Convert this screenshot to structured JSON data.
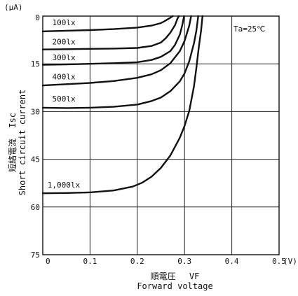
{
  "chart_data": {
    "type": "line",
    "y_unit_label": "(μA)",
    "x_unit_label": "(V)",
    "condition_note": "Ta=25℃",
    "y_title_jp": "短絡電流",
    "y_title_symbol": "Isc",
    "y_title_en": "Short circuit current",
    "x_title_jp": "順電圧",
    "x_title_symbol": "VF",
    "x_title_en": "Forward voltage",
    "xlim": [
      0,
      0.5
    ],
    "ylim": [
      0,
      75
    ],
    "y_inverted": true,
    "grid": true,
    "x_ticks": [
      {
        "value": 0,
        "label": "0"
      },
      {
        "value": 0.1,
        "label": "0.1"
      },
      {
        "value": 0.2,
        "label": "0.2"
      },
      {
        "value": 0.3,
        "label": "0.3"
      },
      {
        "value": 0.4,
        "label": "0.4"
      },
      {
        "value": 0.5,
        "label": "0.5"
      }
    ],
    "y_ticks": [
      {
        "value": 0,
        "label": "0"
      },
      {
        "value": 15,
        "label": "15"
      },
      {
        "value": 30,
        "label": "30"
      },
      {
        "value": 45,
        "label": "45"
      },
      {
        "value": 60,
        "label": "60"
      },
      {
        "value": 75,
        "label": "75"
      }
    ],
    "series": [
      {
        "name": "100lx",
        "label_x": 0.02,
        "label_y": 2,
        "points": [
          [
            0,
            4.8
          ],
          [
            0.05,
            4.6
          ],
          [
            0.1,
            4.4
          ],
          [
            0.15,
            4.1
          ],
          [
            0.2,
            3.6
          ],
          [
            0.23,
            3.0
          ],
          [
            0.25,
            2.2
          ],
          [
            0.26,
            1.4
          ],
          [
            0.27,
            0.5
          ],
          [
            0.275,
            0
          ]
        ]
      },
      {
        "name": "200lx",
        "label_x": 0.02,
        "label_y": 8,
        "points": [
          [
            0,
            10.5
          ],
          [
            0.05,
            10.4
          ],
          [
            0.1,
            10.3
          ],
          [
            0.15,
            10.2
          ],
          [
            0.2,
            10.0
          ],
          [
            0.23,
            9.4
          ],
          [
            0.25,
            8.3
          ],
          [
            0.26,
            7.0
          ],
          [
            0.27,
            5.2
          ],
          [
            0.28,
            2.8
          ],
          [
            0.285,
            0.8
          ],
          [
            0.288,
            0
          ]
        ]
      },
      {
        "name": "300lx",
        "label_x": 0.02,
        "label_y": 13,
        "points": [
          [
            0,
            15.3
          ],
          [
            0.05,
            15.2
          ],
          [
            0.1,
            15.0
          ],
          [
            0.15,
            14.8
          ],
          [
            0.2,
            14.5
          ],
          [
            0.23,
            13.8
          ],
          [
            0.25,
            12.8
          ],
          [
            0.27,
            11.0
          ],
          [
            0.28,
            9.0
          ],
          [
            0.29,
            5.8
          ],
          [
            0.295,
            3.0
          ],
          [
            0.299,
            0
          ]
        ]
      },
      {
        "name": "400lx",
        "label_x": 0.02,
        "label_y": 19,
        "points": [
          [
            0,
            21.8
          ],
          [
            0.05,
            21.4
          ],
          [
            0.1,
            21.0
          ],
          [
            0.15,
            20.4
          ],
          [
            0.2,
            19.4
          ],
          [
            0.23,
            18.3
          ],
          [
            0.25,
            17.0
          ],
          [
            0.27,
            14.8
          ],
          [
            0.29,
            11.0
          ],
          [
            0.3,
            7.8
          ],
          [
            0.31,
            3.0
          ],
          [
            0.314,
            0
          ]
        ]
      },
      {
        "name": "500lx",
        "label_x": 0.02,
        "label_y": 26,
        "points": [
          [
            0,
            28.8
          ],
          [
            0.05,
            28.9
          ],
          [
            0.1,
            28.8
          ],
          [
            0.15,
            28.5
          ],
          [
            0.2,
            27.8
          ],
          [
            0.23,
            26.7
          ],
          [
            0.25,
            25.6
          ],
          [
            0.27,
            23.6
          ],
          [
            0.29,
            20.5
          ],
          [
            0.3,
            18.0
          ],
          [
            0.31,
            14.2
          ],
          [
            0.32,
            8.5
          ],
          [
            0.325,
            4.5
          ],
          [
            0.329,
            0
          ]
        ]
      },
      {
        "name": "1,000lx",
        "label_x": 0.01,
        "label_y": 53,
        "points": [
          [
            0,
            55.7
          ],
          [
            0.05,
            55.6
          ],
          [
            0.1,
            55.4
          ],
          [
            0.15,
            54.8
          ],
          [
            0.19,
            53.6
          ],
          [
            0.21,
            52.4
          ],
          [
            0.23,
            50.5
          ],
          [
            0.25,
            47.7
          ],
          [
            0.27,
            43.8
          ],
          [
            0.29,
            38.2
          ],
          [
            0.3,
            34.5
          ],
          [
            0.31,
            29.8
          ],
          [
            0.32,
            22.0
          ],
          [
            0.325,
            16.2
          ],
          [
            0.33,
            10.0
          ],
          [
            0.335,
            4.5
          ],
          [
            0.338,
            0
          ]
        ]
      }
    ]
  }
}
